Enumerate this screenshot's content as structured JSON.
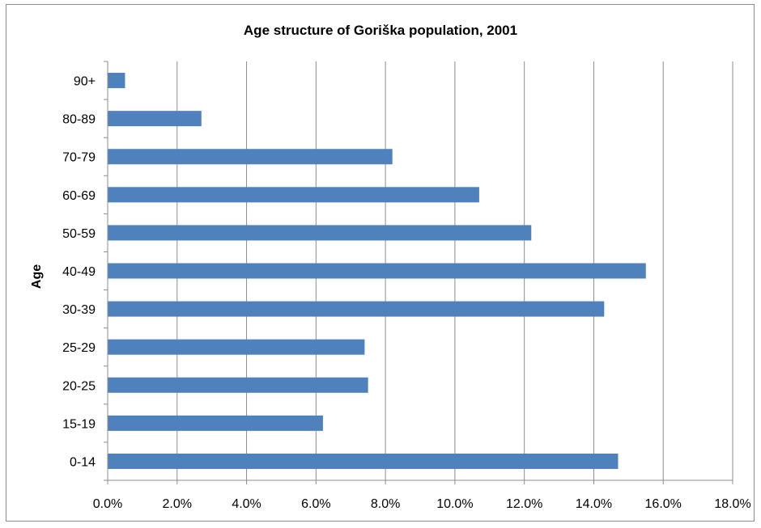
{
  "chart_data": {
    "type": "bar",
    "orientation": "horizontal",
    "title": "Age structure  of Goriška population, 2001",
    "xlabel": "",
    "ylabel": "Age",
    "categories": [
      "0-14",
      "15-19",
      "20-25",
      "25-29",
      "30-39",
      "40-49",
      "50-59",
      "60-69",
      "70-79",
      "80-89",
      "90+"
    ],
    "values": [
      14.7,
      6.2,
      7.5,
      7.4,
      14.3,
      15.5,
      12.2,
      10.7,
      8.2,
      2.7,
      0.5
    ],
    "xlim": [
      0,
      18
    ],
    "x_ticks": [
      "0.0%",
      "2.0%",
      "4.0%",
      "6.0%",
      "8.0%",
      "10.0%",
      "12.0%",
      "14.0%",
      "16.0%",
      "18.0%"
    ],
    "grid": true,
    "bar_color": "#4f81bd"
  }
}
